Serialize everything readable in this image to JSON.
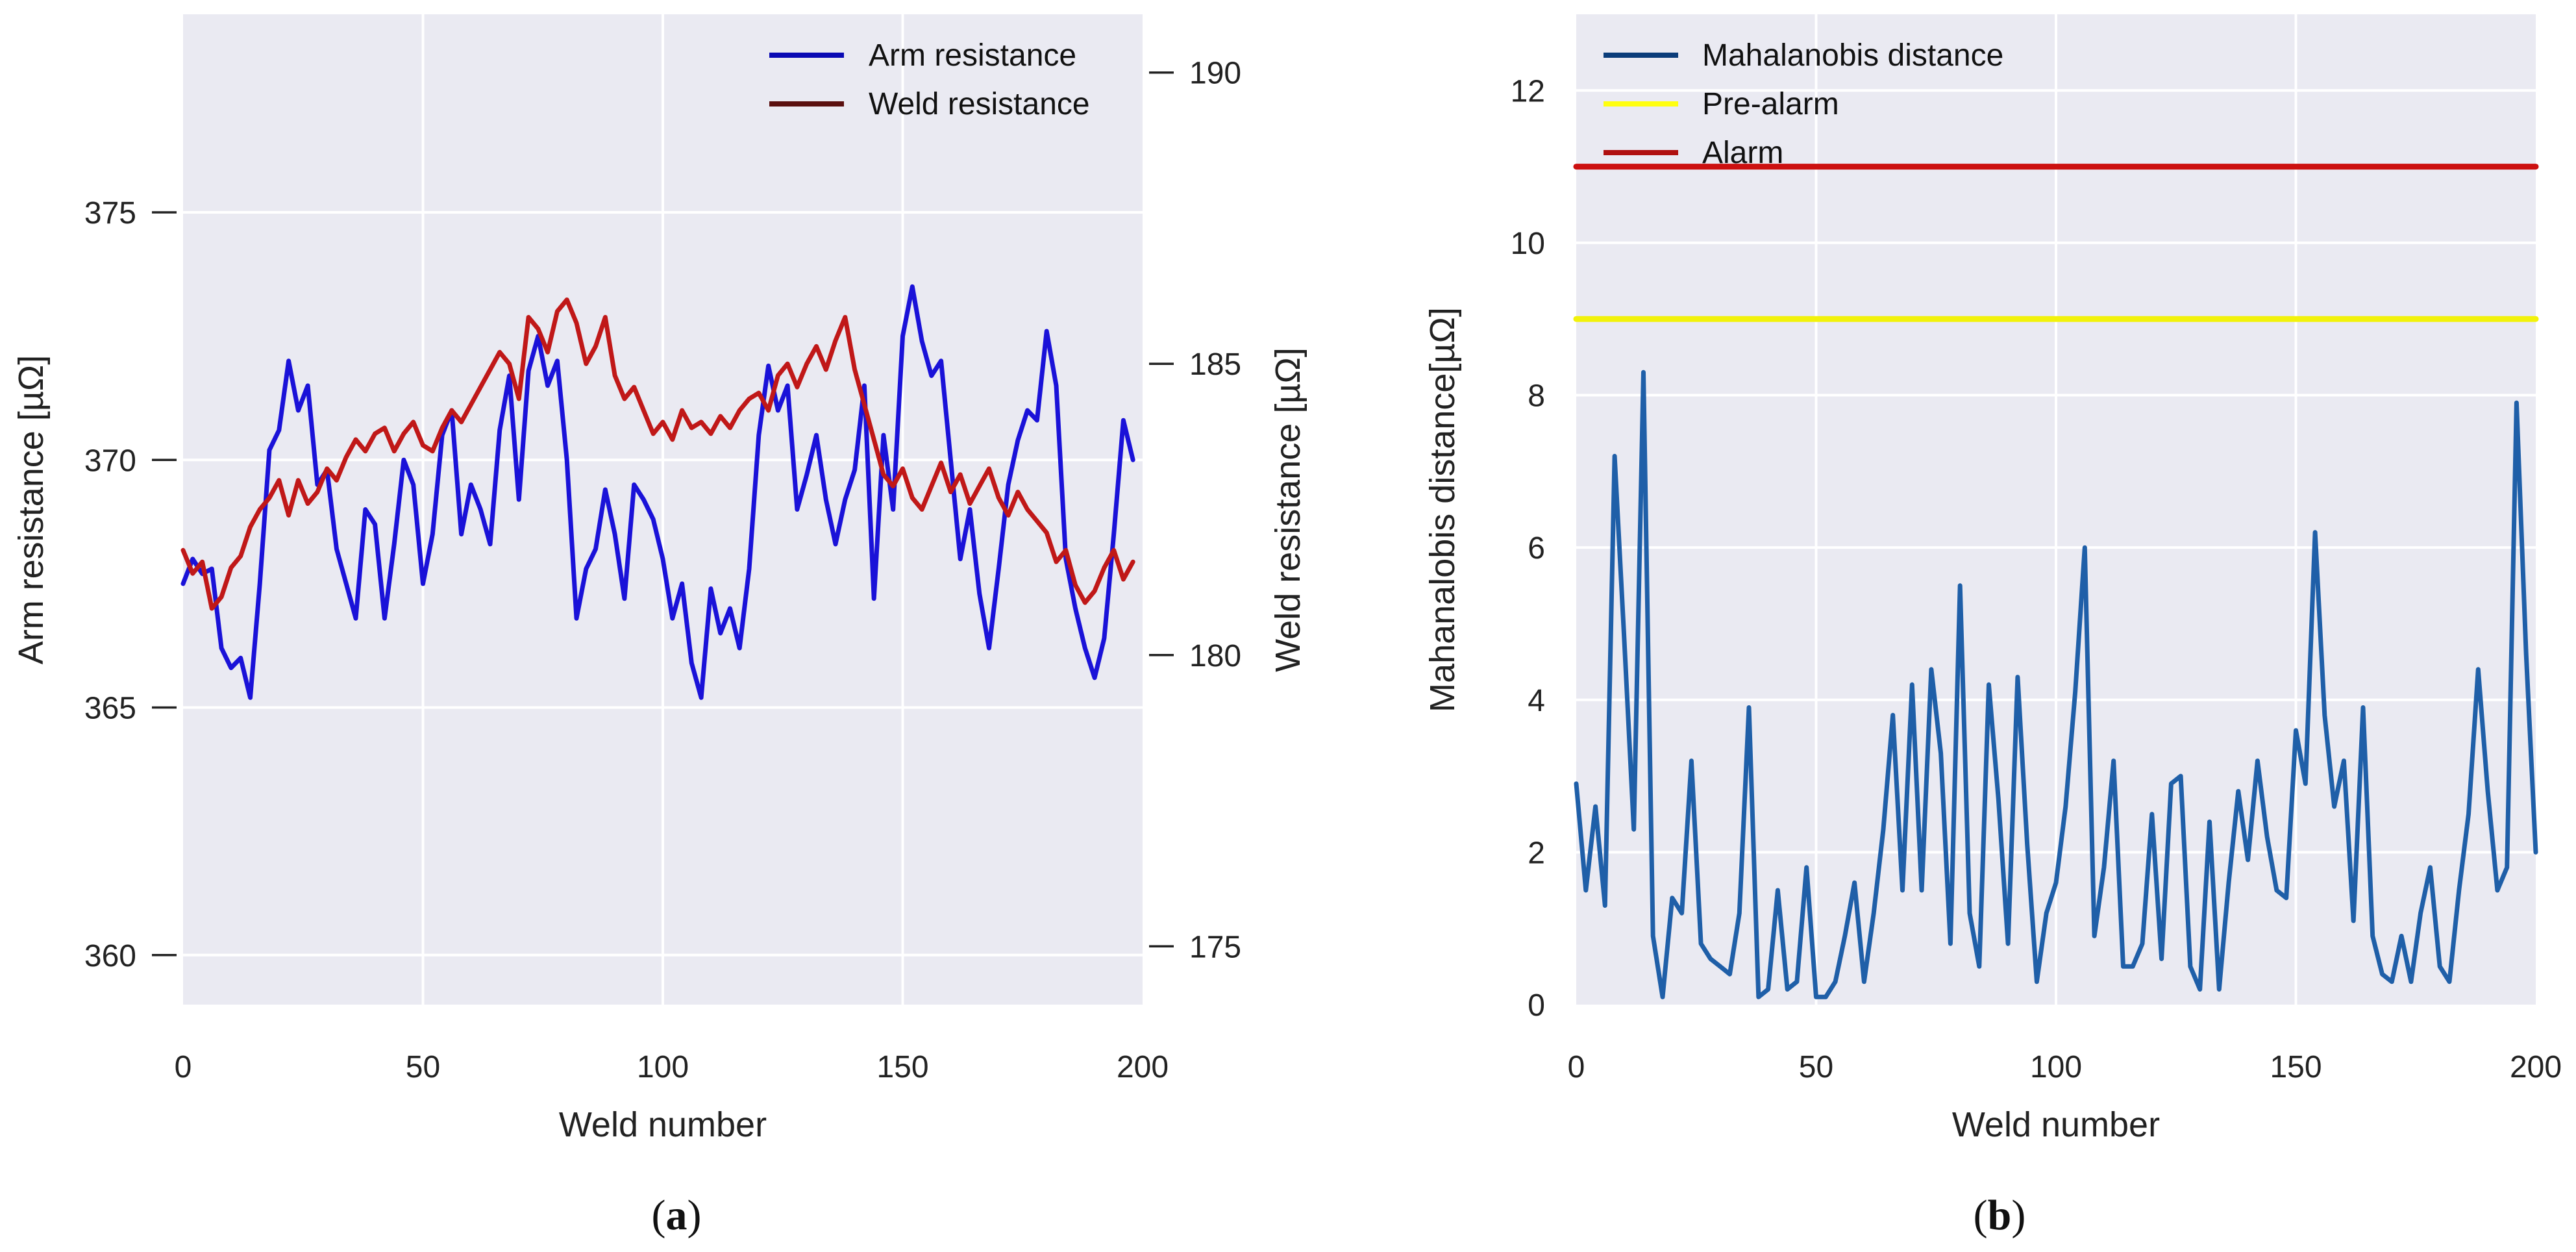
{
  "chart_data": [
    {
      "type": "line",
      "panel_label": "a",
      "xlabel": "Weld number",
      "ylabel": "Arm resistance [µΩ]",
      "y2label": "Weld resistance [µΩ]",
      "xlim": [
        0,
        200
      ],
      "ylim": [
        359,
        379
      ],
      "y2lim": [
        174,
        191
      ],
      "xticks": [
        0,
        50,
        100,
        150,
        200
      ],
      "yticks": [
        360,
        365,
        370,
        375
      ],
      "y2ticks": [
        175,
        180,
        185,
        190
      ],
      "grid": true,
      "legend_position": "top-right",
      "series": [
        {
          "name": "Arm resistance",
          "axis": "left",
          "legend_color": "#0a0ab4",
          "color": "#1a12d8",
          "x": [
            0,
            2,
            4,
            6,
            8,
            10,
            12,
            14,
            16,
            18,
            20,
            22,
            24,
            26,
            28,
            30,
            32,
            34,
            36,
            38,
            40,
            42,
            44,
            46,
            48,
            50,
            52,
            54,
            56,
            58,
            60,
            62,
            64,
            66,
            68,
            70,
            72,
            74,
            76,
            78,
            80,
            82,
            84,
            86,
            88,
            90,
            92,
            94,
            96,
            98,
            100,
            102,
            104,
            106,
            108,
            110,
            112,
            114,
            116,
            118,
            120,
            122,
            124,
            126,
            128,
            130,
            132,
            134,
            136,
            138,
            140,
            142,
            144,
            146,
            148,
            150,
            152,
            154,
            156,
            158,
            160,
            162,
            164,
            166,
            168,
            170,
            172,
            174,
            176,
            178,
            180,
            182,
            184,
            186,
            188,
            190,
            192,
            194,
            196,
            198
          ],
          "y": [
            367.5,
            368,
            367.7,
            367.8,
            366.2,
            365.8,
            366,
            365.2,
            367.5,
            370.2,
            370.6,
            372,
            371,
            371.5,
            369.5,
            369.8,
            368.2,
            367.5,
            366.8,
            369,
            368.7,
            366.8,
            368.3,
            370,
            369.5,
            367.5,
            368.5,
            370.5,
            371,
            368.5,
            369.5,
            369,
            368.3,
            370.6,
            371.7,
            369.2,
            371.8,
            372.5,
            371.5,
            372,
            370,
            366.8,
            367.8,
            368.2,
            369.4,
            368.5,
            367.2,
            369.5,
            369.2,
            368.8,
            368,
            366.8,
            367.5,
            365.9,
            365.2,
            367.4,
            366.5,
            367,
            366.2,
            367.8,
            370.5,
            371.9,
            371,
            371.5,
            369,
            369.7,
            370.5,
            369.2,
            368.3,
            369.2,
            369.8,
            371.5,
            367.2,
            370.5,
            369,
            372.5,
            373.5,
            372.4,
            371.7,
            372,
            370,
            368,
            369,
            367.3,
            366.2,
            367.8,
            369.5,
            370.4,
            371,
            370.8,
            372.6,
            371.5,
            368,
            367,
            366.2,
            365.6,
            366.4,
            368.5,
            370.8,
            370
          ]
        },
        {
          "name": "Weld resistance",
          "axis": "right",
          "legend_color": "#5a0f0f",
          "color": "#c01818",
          "x": [
            0,
            2,
            4,
            6,
            8,
            10,
            12,
            14,
            16,
            18,
            20,
            22,
            24,
            26,
            28,
            30,
            32,
            34,
            36,
            38,
            40,
            42,
            44,
            46,
            48,
            50,
            52,
            54,
            56,
            58,
            60,
            62,
            64,
            66,
            68,
            70,
            72,
            74,
            76,
            78,
            80,
            82,
            84,
            86,
            88,
            90,
            92,
            94,
            96,
            98,
            100,
            102,
            104,
            106,
            108,
            110,
            112,
            114,
            116,
            118,
            120,
            122,
            124,
            126,
            128,
            130,
            132,
            134,
            136,
            138,
            140,
            142,
            144,
            146,
            148,
            150,
            152,
            154,
            156,
            158,
            160,
            162,
            164,
            166,
            168,
            170,
            172,
            174,
            176,
            178,
            180,
            182,
            184,
            186,
            188,
            190,
            192,
            194,
            196,
            198
          ],
          "y": [
            181.8,
            181.4,
            181.6,
            180.8,
            181,
            181.5,
            181.7,
            182.2,
            182.5,
            182.7,
            183,
            182.4,
            183,
            182.6,
            182.8,
            183.2,
            183,
            183.4,
            183.7,
            183.5,
            183.8,
            183.9,
            183.5,
            183.8,
            184,
            183.6,
            183.5,
            183.9,
            184.2,
            184,
            184.3,
            184.6,
            184.9,
            185.2,
            185,
            184.4,
            185.8,
            185.6,
            185.2,
            185.9,
            186.1,
            185.7,
            185,
            185.3,
            185.8,
            184.8,
            184.4,
            184.6,
            184.2,
            183.8,
            184,
            183.7,
            184.2,
            183.9,
            184,
            183.8,
            184.1,
            183.9,
            184.2,
            184.4,
            184.5,
            184.2,
            184.8,
            185,
            184.6,
            185,
            185.3,
            184.9,
            185.4,
            185.8,
            184.9,
            184.3,
            183.7,
            183.1,
            182.9,
            183.2,
            182.7,
            182.5,
            182.9,
            183.3,
            182.8,
            183.1,
            182.6,
            182.9,
            183.2,
            182.7,
            182.4,
            182.8,
            182.5,
            182.3,
            182.1,
            181.6,
            181.8,
            181.2,
            180.9,
            181.1,
            181.5,
            181.8,
            181.3,
            181.6
          ]
        }
      ]
    },
    {
      "type": "line",
      "panel_label": "b",
      "xlabel": "Weld number",
      "ylabel": "Mahanalobis distance[µΩ]",
      "xlim": [
        0,
        200
      ],
      "ylim": [
        0,
        13
      ],
      "xticks": [
        0,
        50,
        100,
        150,
        200
      ],
      "yticks": [
        0,
        2,
        4,
        6,
        8,
        10,
        12
      ],
      "grid": true,
      "legend_position": "top-left",
      "series": [
        {
          "name": "Mahalanobis distance",
          "legend_color": "#0b3d7a",
          "color": "#1f5fa8",
          "x": [
            0,
            2,
            4,
            6,
            8,
            10,
            12,
            14,
            16,
            18,
            20,
            22,
            24,
            26,
            28,
            30,
            32,
            34,
            36,
            38,
            40,
            42,
            44,
            46,
            48,
            50,
            52,
            54,
            56,
            58,
            60,
            62,
            64,
            66,
            68,
            70,
            72,
            74,
            76,
            78,
            80,
            82,
            84,
            86,
            88,
            90,
            92,
            94,
            96,
            98,
            100,
            102,
            104,
            106,
            108,
            110,
            112,
            114,
            116,
            118,
            120,
            122,
            124,
            126,
            128,
            130,
            132,
            134,
            136,
            138,
            140,
            142,
            144,
            146,
            148,
            150,
            152,
            154,
            156,
            158,
            160,
            162,
            164,
            166,
            168,
            170,
            172,
            174,
            176,
            178,
            180,
            182,
            184,
            186,
            188,
            190,
            192,
            194,
            196,
            198,
            200
          ],
          "y": [
            2.9,
            1.5,
            2.6,
            1.3,
            7.2,
            4.8,
            2.3,
            8.3,
            0.9,
            0.1,
            1.4,
            1.2,
            3.2,
            0.8,
            0.6,
            0.5,
            0.4,
            1.2,
            3.9,
            0.1,
            0.2,
            1.5,
            0.2,
            0.3,
            1.8,
            0.1,
            0.1,
            0.3,
            0.9,
            1.6,
            0.3,
            1.2,
            2.3,
            3.8,
            1.5,
            4.2,
            1.5,
            4.4,
            3.3,
            0.8,
            5.5,
            1.2,
            0.5,
            4.2,
            2.7,
            0.8,
            4.3,
            2.1,
            0.3,
            1.2,
            1.6,
            2.6,
            4.1,
            6.0,
            0.9,
            1.8,
            3.2,
            0.5,
            0.5,
            0.8,
            2.5,
            0.6,
            2.9,
            3.0,
            0.5,
            0.2,
            2.4,
            0.2,
            1.6,
            2.8,
            1.9,
            3.2,
            2.2,
            1.5,
            1.4,
            3.6,
            2.9,
            6.2,
            3.8,
            2.6,
            3.2,
            1.1,
            3.9,
            0.9,
            0.4,
            0.3,
            0.9,
            0.3,
            1.2,
            1.8,
            0.5,
            0.3,
            1.5,
            2.5,
            4.4,
            2.8,
            1.5,
            1.8,
            7.9,
            4.6,
            2.0
          ]
        },
        {
          "name": "Pre-alarm",
          "legend_color": "#ffff10",
          "color": "#f2f20a",
          "x": [
            0,
            200
          ],
          "y": [
            9,
            9
          ]
        },
        {
          "name": "Alarm",
          "legend_color": "#b01010",
          "color": "#cc1010",
          "x": [
            0,
            200
          ],
          "y": [
            11,
            11
          ]
        }
      ]
    }
  ]
}
